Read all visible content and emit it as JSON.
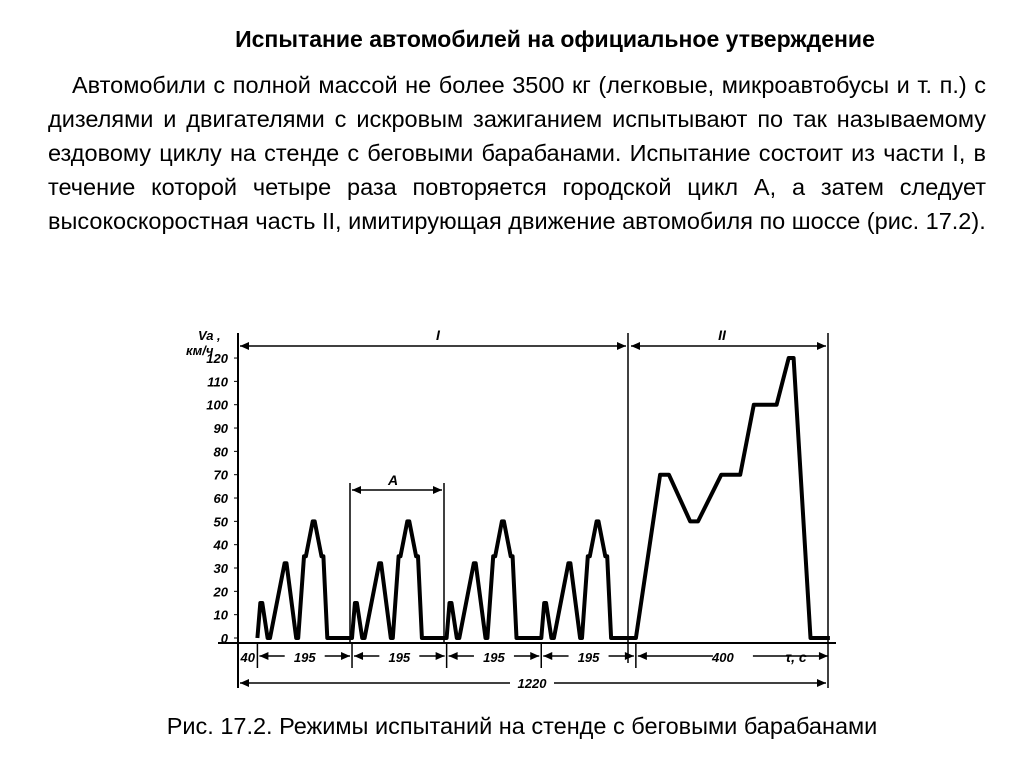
{
  "title": "Испытание автомобилей на официальное утверждение",
  "paragraph": "Автомобили с полной массой не более 3500 кг (легковые, микроавтобусы и т. п.) с дизелями и двигателями с искровым зажиганием испытывают по так называемому ездовому циклу на стенде с беговыми барабанами. Испытание состоит из части I, в течение которой четыре раза повторяется городской цикл A, а затем следует высокоскоростная часть II, имитирующая движение автомобиля по шоссе (рис. 17.2).",
  "caption": "Рис. 17.2. Режимы испытаний на стенде с беговыми барабанами",
  "chart_data": {
    "type": "line",
    "title": "",
    "ylabel": "Va, км/ч",
    "xlabel": "τ, с",
    "ylim": [
      0,
      120
    ],
    "yticks": [
      0,
      10,
      20,
      30,
      40,
      50,
      60,
      70,
      80,
      90,
      100,
      110,
      120
    ],
    "xlim": [
      0,
      1220
    ],
    "series": [
      {
        "x": [
          40,
          46,
          50,
          61,
          66,
          96,
          100,
          120,
          124,
          136,
          140,
          154,
          158,
          172,
          176,
          184,
          190,
          196,
          201,
          235,
          241,
          245,
          256,
          261,
          291,
          295,
          315,
          319,
          331,
          335,
          349,
          353,
          367,
          371,
          379,
          385,
          391,
          396,
          430,
          436,
          440,
          451,
          456,
          486,
          490,
          510,
          514,
          526,
          530,
          544,
          548,
          562,
          566,
          574,
          580,
          586,
          591,
          625,
          631,
          635,
          646,
          651,
          681,
          685,
          705,
          709,
          721,
          725,
          739,
          743,
          757,
          761,
          769,
          775,
          781,
          786,
          820,
          870,
          888,
          932,
          948,
          996,
          1000,
          1009,
          1035,
          1063,
          1100,
          1110,
          1135,
          1145,
          1180,
          1220
        ],
        "values": [
          0,
          15,
          15,
          0,
          0,
          32,
          32,
          0,
          0,
          35,
          35,
          50,
          50,
          35,
          35,
          0,
          0,
          0,
          0,
          0,
          15,
          15,
          0,
          0,
          32,
          32,
          0,
          0,
          35,
          35,
          50,
          50,
          35,
          35,
          0,
          0,
          0,
          0,
          0,
          15,
          15,
          0,
          0,
          32,
          32,
          0,
          0,
          35,
          35,
          50,
          50,
          35,
          35,
          0,
          0,
          0,
          0,
          0,
          15,
          15,
          0,
          0,
          32,
          32,
          0,
          0,
          35,
          35,
          50,
          50,
          35,
          35,
          0,
          0,
          0,
          0,
          0,
          70,
          70,
          50,
          50,
          70,
          70,
          70,
          70,
          100,
          100,
          100,
          120,
          120,
          0,
          0
        ]
      }
    ],
    "parts": {
      "part1_label": "I",
      "part2_label": "II",
      "cycle_label": "A"
    },
    "durations": {
      "labels": [
        "40",
        "195",
        "195",
        "195",
        "195",
        "400"
      ],
      "total_label": "1220",
      "boundaries": [
        0,
        40,
        235,
        430,
        625,
        820,
        1220
      ]
    }
  }
}
